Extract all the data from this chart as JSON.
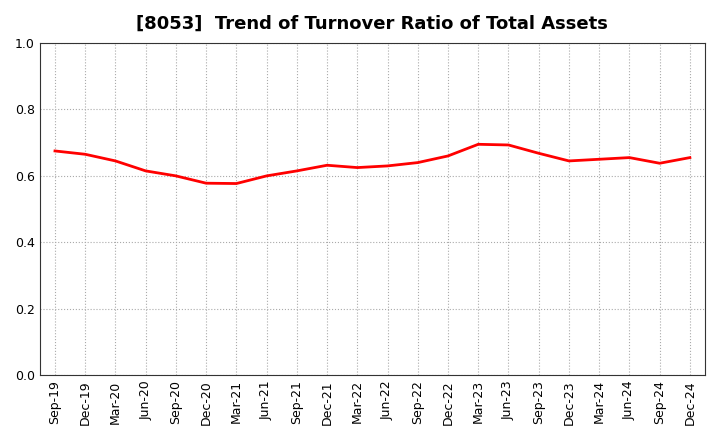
{
  "title": "[8053]  Trend of Turnover Ratio of Total Assets",
  "ylim": [
    0.0,
    1.0
  ],
  "yticks": [
    0.0,
    0.2,
    0.4,
    0.6,
    0.8,
    1.0
  ],
  "line_color": "#ff0000",
  "line_width": 2.0,
  "background_color": "#ffffff",
  "grid_color": "#aaaaaa",
  "labels": [
    "Sep-19",
    "Dec-19",
    "Mar-20",
    "Jun-20",
    "Sep-20",
    "Dec-20",
    "Mar-21",
    "Jun-21",
    "Sep-21",
    "Dec-21",
    "Mar-22",
    "Jun-22",
    "Sep-22",
    "Dec-22",
    "Mar-23",
    "Jun-23",
    "Sep-23",
    "Dec-23",
    "Mar-24",
    "Jun-24",
    "Sep-24",
    "Dec-24"
  ],
  "values": [
    0.675,
    0.665,
    0.645,
    0.615,
    0.6,
    0.578,
    0.577,
    0.6,
    0.615,
    0.632,
    0.625,
    0.63,
    0.64,
    0.66,
    0.695,
    0.693,
    0.668,
    0.645,
    0.65,
    0.655,
    0.638,
    0.655
  ],
  "title_fontsize": 13,
  "tick_fontsize": 9
}
